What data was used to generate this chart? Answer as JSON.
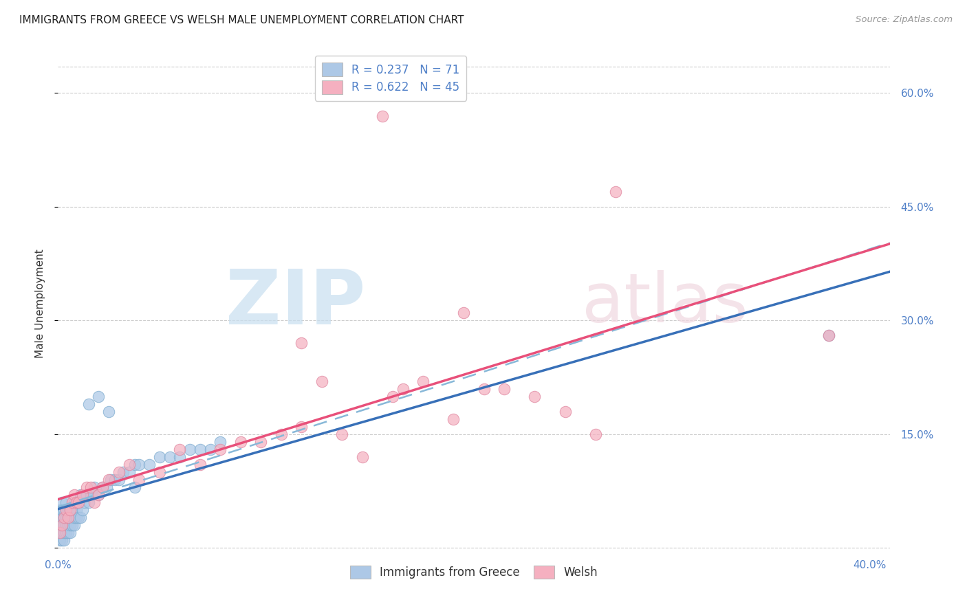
{
  "title": "IMMIGRANTS FROM GREECE VS WELSH MALE UNEMPLOYMENT CORRELATION CHART",
  "source": "Source: ZipAtlas.com",
  "ylabel": "Male Unemployment",
  "y_ticks": [
    0.0,
    0.15,
    0.3,
    0.45,
    0.6
  ],
  "y_tick_labels_right": [
    "",
    "15.0%",
    "30.0%",
    "45.0%",
    "60.0%"
  ],
  "x_tick_positions": [
    0.0,
    0.05,
    0.1,
    0.15,
    0.2,
    0.25,
    0.3,
    0.35,
    0.4
  ],
  "xlim": [
    0.0,
    0.41
  ],
  "ylim": [
    -0.005,
    0.65
  ],
  "blue_scatter_color": "#adc8e6",
  "blue_edge_color": "#80aed0",
  "pink_scatter_color": "#f5b0c0",
  "pink_edge_color": "#e088a0",
  "blue_line_color": "#3870b8",
  "pink_line_color": "#e8507a",
  "dashed_line_color": "#88b8d8",
  "tick_label_color": "#5080c8",
  "ylabel_color": "#333333",
  "title_color": "#222222",
  "source_color": "#999999",
  "grid_color": "#cccccc",
  "watermark_zip_color": "#c8dff0",
  "watermark_atlas_color": "#f0d8e0",
  "legend1_label": "R = 0.237   N = 71",
  "legend2_label": "R = 0.622   N = 45",
  "bottom_legend1": "Immigrants from Greece",
  "bottom_legend2": "Welsh",
  "blue_x": [
    0.001,
    0.001,
    0.001,
    0.001,
    0.001,
    0.002,
    0.002,
    0.002,
    0.002,
    0.002,
    0.002,
    0.003,
    0.003,
    0.003,
    0.003,
    0.003,
    0.004,
    0.004,
    0.004,
    0.004,
    0.004,
    0.005,
    0.005,
    0.005,
    0.005,
    0.006,
    0.006,
    0.006,
    0.006,
    0.007,
    0.007,
    0.007,
    0.008,
    0.008,
    0.008,
    0.009,
    0.009,
    0.01,
    0.01,
    0.011,
    0.011,
    0.012,
    0.013,
    0.014,
    0.015,
    0.016,
    0.017,
    0.018,
    0.02,
    0.022,
    0.024,
    0.026,
    0.028,
    0.03,
    0.032,
    0.035,
    0.038,
    0.04,
    0.045,
    0.05,
    0.055,
    0.06,
    0.065,
    0.07,
    0.075,
    0.08,
    0.02,
    0.025,
    0.015,
    0.038,
    0.38
  ],
  "blue_y": [
    0.01,
    0.02,
    0.03,
    0.04,
    0.05,
    0.01,
    0.02,
    0.03,
    0.04,
    0.05,
    0.06,
    0.01,
    0.02,
    0.03,
    0.04,
    0.05,
    0.02,
    0.03,
    0.04,
    0.05,
    0.06,
    0.02,
    0.03,
    0.04,
    0.05,
    0.02,
    0.03,
    0.04,
    0.05,
    0.03,
    0.04,
    0.05,
    0.03,
    0.04,
    0.06,
    0.04,
    0.05,
    0.04,
    0.06,
    0.04,
    0.07,
    0.05,
    0.06,
    0.07,
    0.06,
    0.07,
    0.07,
    0.08,
    0.07,
    0.08,
    0.08,
    0.09,
    0.09,
    0.09,
    0.1,
    0.1,
    0.11,
    0.11,
    0.11,
    0.12,
    0.12,
    0.12,
    0.13,
    0.13,
    0.13,
    0.14,
    0.2,
    0.18,
    0.19,
    0.08,
    0.28
  ],
  "pink_x": [
    0.001,
    0.002,
    0.003,
    0.004,
    0.005,
    0.006,
    0.007,
    0.008,
    0.009,
    0.01,
    0.012,
    0.014,
    0.016,
    0.018,
    0.02,
    0.022,
    0.025,
    0.03,
    0.035,
    0.04,
    0.05,
    0.06,
    0.07,
    0.08,
    0.09,
    0.1,
    0.11,
    0.12,
    0.13,
    0.14,
    0.15,
    0.165,
    0.17,
    0.18,
    0.195,
    0.21,
    0.22,
    0.235,
    0.25,
    0.265,
    0.38,
    0.16,
    0.275,
    0.2,
    0.12
  ],
  "pink_y": [
    0.02,
    0.03,
    0.04,
    0.05,
    0.04,
    0.05,
    0.06,
    0.07,
    0.06,
    0.06,
    0.07,
    0.08,
    0.08,
    0.06,
    0.07,
    0.08,
    0.09,
    0.1,
    0.11,
    0.09,
    0.1,
    0.13,
    0.11,
    0.13,
    0.14,
    0.14,
    0.15,
    0.16,
    0.22,
    0.15,
    0.12,
    0.2,
    0.21,
    0.22,
    0.17,
    0.21,
    0.21,
    0.2,
    0.18,
    0.15,
    0.28,
    0.57,
    0.47,
    0.31,
    0.27
  ]
}
